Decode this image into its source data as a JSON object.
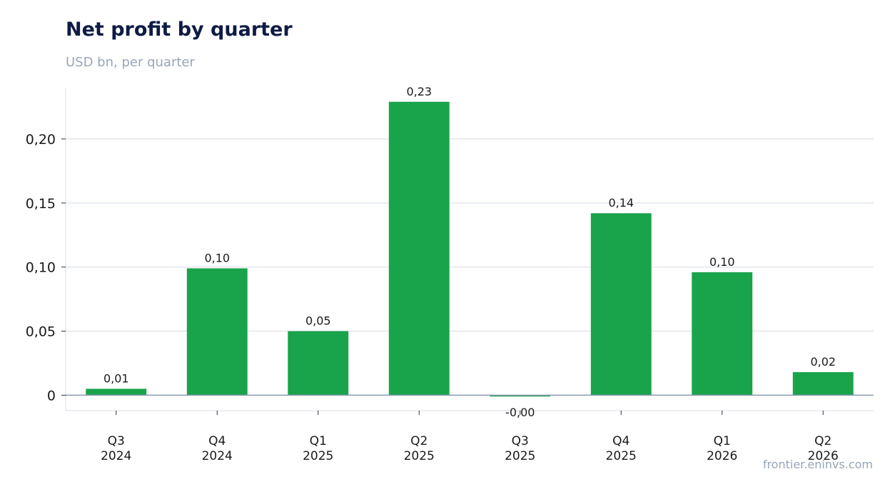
{
  "header": {
    "title": "Net profit by quarter",
    "subtitle": "USD bn, per quarter"
  },
  "footer": {
    "source": "frontier.eninvs.com"
  },
  "colors": {
    "bar": "#19a34a",
    "grid": "#e2e6ee",
    "zero_line": "#8a9bb0",
    "frame": "#e6e9ef"
  },
  "chart_data": {
    "type": "bar",
    "title": "Net profit by quarter",
    "subtitle": "USD bn, per quarter",
    "xlabel": "",
    "ylabel": "",
    "categories": [
      [
        "Q3",
        "2024"
      ],
      [
        "Q4",
        "2024"
      ],
      [
        "Q1",
        "2025"
      ],
      [
        "Q2",
        "2025"
      ],
      [
        "Q3",
        "2025"
      ],
      [
        "Q4",
        "2025"
      ],
      [
        "Q1",
        "2026"
      ],
      [
        "Q2",
        "2026"
      ]
    ],
    "values": [
      0.005,
      0.099,
      0.05,
      0.229,
      -0.001,
      0.142,
      0.096,
      0.018
    ],
    "data_labels": [
      "0,01",
      "0,10",
      "0,05",
      "0,23",
      "-0,00",
      "0,14",
      "0,10",
      "0,02"
    ],
    "ylim": [
      -0.012,
      0.24
    ],
    "yticks": [
      0,
      0.05,
      0.1,
      0.15,
      0.2
    ],
    "ytick_labels": [
      "0",
      "0,05",
      "0,10",
      "0,15",
      "0,20"
    ],
    "grid": true,
    "legend": "none"
  }
}
